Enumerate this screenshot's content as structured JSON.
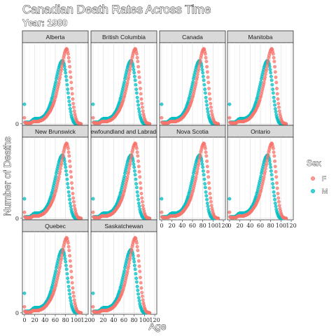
{
  "title": "Canadian Death Rates Across Time",
  "subtitle": "Year: 1980",
  "chart_data": {
    "type": "scatter",
    "title": "Canadian Death Rates Across Time",
    "subtitle": "Year: 1980",
    "xlabel": "Age",
    "ylabel": "Number of Deaths",
    "xlim": [
      -4,
      124
    ],
    "x_ticks": [
      0,
      20,
      40,
      60,
      80,
      100,
      120
    ],
    "y_ticks": [
      0
    ],
    "grid": true,
    "legend": {
      "title": "Sex",
      "position": "right",
      "entries": [
        {
          "label": "F",
          "color": "#F8766D"
        },
        {
          "label": "M",
          "color": "#00BFC4"
        }
      ]
    },
    "facets": [
      "Alberta",
      "British Columbia",
      "Canada",
      "Manitoba",
      "New Brunswick",
      "Newfoundland and Labrador",
      "Nova Scotia",
      "Ontario",
      "Quebec",
      "Saskatchewan"
    ],
    "series": [
      {
        "name": "F",
        "color": "#F8766D",
        "x": [
          0,
          1,
          2,
          3,
          4,
          5,
          6,
          7,
          8,
          9,
          10,
          11,
          12,
          13,
          14,
          15,
          16,
          17,
          18,
          19,
          20,
          21,
          22,
          23,
          24,
          25,
          26,
          27,
          28,
          29,
          30,
          31,
          32,
          33,
          34,
          35,
          36,
          37,
          38,
          39,
          40,
          41,
          42,
          43,
          44,
          45,
          46,
          47,
          48,
          49,
          50,
          51,
          52,
          53,
          54,
          55,
          56,
          57,
          58,
          59,
          60,
          61,
          62,
          63,
          64,
          65,
          66,
          67,
          68,
          69,
          70,
          71,
          72,
          73,
          74,
          75,
          76,
          77,
          78,
          79,
          80,
          81,
          82,
          83,
          84,
          85,
          86,
          87,
          88,
          89,
          90,
          91,
          92,
          93,
          94,
          95,
          96,
          97,
          98,
          99,
          100,
          101,
          102,
          103,
          104,
          105,
          106,
          107,
          108,
          109,
          110
        ],
        "y": [
          0.08,
          0.02,
          0.01,
          0.01,
          0.01,
          0.01,
          0.01,
          0.01,
          0.01,
          0.01,
          0.01,
          0.01,
          0.01,
          0.01,
          0.02,
          0.02,
          0.03,
          0.03,
          0.03,
          0.03,
          0.03,
          0.03,
          0.03,
          0.03,
          0.03,
          0.03,
          0.03,
          0.03,
          0.03,
          0.04,
          0.04,
          0.04,
          0.04,
          0.05,
          0.05,
          0.05,
          0.06,
          0.06,
          0.07,
          0.07,
          0.08,
          0.09,
          0.09,
          0.1,
          0.11,
          0.12,
          0.13,
          0.14,
          0.15,
          0.16,
          0.17,
          0.18,
          0.2,
          0.21,
          0.23,
          0.24,
          0.26,
          0.28,
          0.3,
          0.32,
          0.35,
          0.37,
          0.4,
          0.43,
          0.46,
          0.49,
          0.52,
          0.55,
          0.59,
          0.62,
          0.66,
          0.7,
          0.73,
          0.77,
          0.81,
          0.84,
          0.88,
          0.91,
          0.94,
          0.96,
          0.98,
          0.99,
          1.0,
          0.99,
          0.96,
          0.93,
          0.88,
          0.83,
          0.76,
          0.69,
          0.62,
          0.55,
          0.47,
          0.4,
          0.33,
          0.27,
          0.22,
          0.17,
          0.13,
          0.1,
          0.07,
          0.05,
          0.03,
          0.02,
          0.01,
          0.01,
          0.01,
          0.0,
          0.0,
          0.0,
          0.0
        ]
      },
      {
        "name": "M",
        "color": "#00BFC4",
        "x": [
          0,
          1,
          2,
          3,
          4,
          5,
          6,
          7,
          8,
          9,
          10,
          11,
          12,
          13,
          14,
          15,
          16,
          17,
          18,
          19,
          20,
          21,
          22,
          23,
          24,
          25,
          26,
          27,
          28,
          29,
          30,
          31,
          32,
          33,
          34,
          35,
          36,
          37,
          38,
          39,
          40,
          41,
          42,
          43,
          44,
          45,
          46,
          47,
          48,
          49,
          50,
          51,
          52,
          53,
          54,
          55,
          56,
          57,
          58,
          59,
          60,
          61,
          62,
          63,
          64,
          65,
          66,
          67,
          68,
          69,
          70,
          71,
          72,
          73,
          74,
          75,
          76,
          77,
          78,
          79,
          80,
          81,
          82,
          83,
          84,
          85,
          86,
          87,
          88,
          89,
          90,
          91,
          92,
          93,
          94,
          95,
          96,
          97,
          98,
          99,
          100,
          101,
          102,
          103,
          104,
          105,
          106,
          107,
          108,
          109,
          110
        ],
        "y": [
          0.26,
          0.02,
          0.02,
          0.02,
          0.02,
          0.02,
          0.02,
          0.02,
          0.02,
          0.02,
          0.02,
          0.02,
          0.03,
          0.03,
          0.04,
          0.04,
          0.05,
          0.06,
          0.06,
          0.06,
          0.07,
          0.07,
          0.07,
          0.07,
          0.07,
          0.07,
          0.07,
          0.07,
          0.07,
          0.07,
          0.07,
          0.07,
          0.08,
          0.08,
          0.08,
          0.09,
          0.09,
          0.1,
          0.1,
          0.11,
          0.12,
          0.13,
          0.14,
          0.15,
          0.16,
          0.17,
          0.19,
          0.2,
          0.22,
          0.24,
          0.26,
          0.28,
          0.3,
          0.33,
          0.35,
          0.38,
          0.41,
          0.44,
          0.47,
          0.5,
          0.53,
          0.56,
          0.6,
          0.63,
          0.66,
          0.69,
          0.72,
          0.75,
          0.77,
          0.79,
          0.81,
          0.82,
          0.83,
          0.84,
          0.84,
          0.83,
          0.81,
          0.79,
          0.76,
          0.72,
          0.68,
          0.63,
          0.58,
          0.52,
          0.46,
          0.41,
          0.35,
          0.3,
          0.25,
          0.2,
          0.16,
          0.12,
          0.09,
          0.07,
          0.05,
          0.03,
          0.02,
          0.01,
          0.01,
          0.0,
          0.0,
          0.0,
          0.0,
          0.0,
          0.0,
          0.0,
          0.0,
          0.0,
          0.0,
          0.0,
          0.0
        ]
      }
    ]
  }
}
